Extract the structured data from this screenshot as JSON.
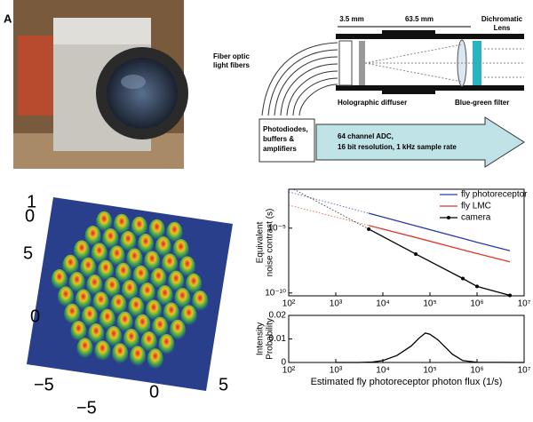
{
  "panel_label": "A",
  "diagram": {
    "dim_1": "3.5 mm",
    "dim_2": "63.5 mm",
    "lens": [
      "Dichromatic",
      "Lens"
    ],
    "fibers": [
      "Fiber optic",
      "light fibers"
    ],
    "diffuser": "Holographic diffuser",
    "filter": "Blue-green filter",
    "box": [
      "Photodiodes,",
      "buffers &",
      "amplifiers"
    ],
    "arrow": [
      "64 channel ADC,",
      "16 bit resolution,  1 kHz sample rate"
    ]
  },
  "surface_plot": {
    "tick_labels": [
      "1",
      "0",
      "5",
      "0",
      "−5",
      "0",
      "5",
      "−5"
    ]
  },
  "chart_data": [
    {
      "type": "line",
      "y_label": [
        "Equivalent",
        "noise contrast (s)"
      ],
      "log_x": true,
      "log_y": true,
      "x": [
        5000,
        50000,
        500000,
        1000000,
        5000000
      ],
      "series": [
        {
          "name": "fly photoreceptor",
          "color": "#2b3aa6",
          "values": [
            0.00014,
            1.5e-05,
            1.6e-06,
            8e-07,
            1.8e-07
          ]
        },
        {
          "name": "fly LMC",
          "color": "#e2352b",
          "values": [
            1.6e-05,
            1.9e-06,
            2.1e-07,
            1.1e-07,
            2.5e-08
          ]
        },
        {
          "name": "camera",
          "color": "#000000",
          "marker": true,
          "values": [
            8.5e-06,
            1e-07,
            1.3e-09,
            3.2e-10,
            6.5e-11
          ]
        }
      ],
      "xlim": [
        100,
        10000000
      ],
      "xticks": [
        {
          "value": 100,
          "label": "10²"
        },
        {
          "value": 1000,
          "label": "10³"
        },
        {
          "value": 10000,
          "label": "10⁴"
        },
        {
          "value": 100000,
          "label": "10⁵"
        },
        {
          "value": 1000000,
          "label": "10⁶"
        },
        {
          "value": 10000000,
          "label": "10⁷"
        }
      ],
      "ylim": [
        6e-11,
        0.01
      ],
      "yticks": [
        {
          "value": 1e-05,
          "label": "10⁻⁵"
        },
        {
          "value": 1e-10,
          "label": "10⁻¹⁰"
        }
      ],
      "legend": "upper-right"
    },
    {
      "type": "line",
      "x_label": "Estimated fly photoreceptor photon flux (1/s)",
      "y_label": [
        "Intensity",
        "Probability"
      ],
      "log_x": true,
      "log_y": false,
      "x": [
        1000,
        3000,
        6000,
        10000,
        20000,
        40000,
        60000,
        80000,
        100000,
        150000,
        200000,
        300000,
        500000,
        1000000,
        10000000
      ],
      "series": [
        {
          "name": "camera",
          "color": "#000000",
          "values": [
            0,
            0,
            0.0002,
            0.0008,
            0.003,
            0.007,
            0.0105,
            0.0125,
            0.012,
            0.0095,
            0.007,
            0.0035,
            0.0008,
            0.0001,
            0
          ]
        }
      ],
      "xlim": [
        100,
        10000000
      ],
      "xticks": [
        {
          "value": 100,
          "label": "10²"
        },
        {
          "value": 1000,
          "label": "10³"
        },
        {
          "value": 10000,
          "label": "10⁴"
        },
        {
          "value": 100000,
          "label": "10⁵"
        },
        {
          "value": 1000000,
          "label": "10⁶"
        },
        {
          "value": 10000000,
          "label": "10⁷"
        }
      ],
      "ylim": [
        0,
        0.02
      ],
      "yticks": [
        0,
        0.01,
        0.02
      ]
    }
  ]
}
